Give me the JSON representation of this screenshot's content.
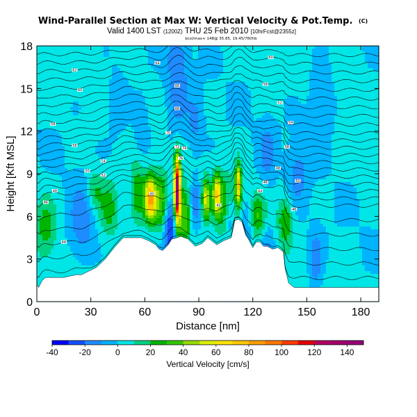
{
  "chart_data": {
    "type": "heatmap",
    "title": "Wind-Parallel Section at Max W: Vertical Velocity & Pot.Temp.",
    "title_mark": "(C)",
    "subtitle_prefix": "Valid 1400 LST",
    "subtitle_utc": "(1200Z)",
    "subtitle_date": "THU 25 Feb 2010",
    "subtitle_model": "[10hrFcst@2355z]",
    "subtitle2": "bcsl/max+ 148@ 35.85, 19.45/760hb",
    "xlabel": "Distance [nm]",
    "ylabel": "Height [Kft MSL]",
    "xlim": [
      0,
      190
    ],
    "ylim": [
      0,
      18
    ],
    "xticks": [
      0,
      30,
      60,
      90,
      120,
      150,
      180
    ],
    "yticks": [
      0,
      3,
      6,
      9,
      12,
      15,
      18
    ],
    "colorbar": {
      "label": "Vertical Velocity [cm/s]",
      "range": [
        -40,
        150
      ],
      "tick_values": [
        -40,
        -20,
        0,
        20,
        40,
        60,
        80,
        100,
        120,
        140
      ],
      "tick_labels": [
        "-40",
        "-20",
        "0",
        "20",
        "40",
        "60",
        "80",
        "100",
        "120",
        "140"
      ],
      "colors": [
        "#0000ff",
        "#1450ff",
        "#1e8cff",
        "#00b4ff",
        "#00e6e6",
        "#00d282",
        "#00b400",
        "#32c800",
        "#96dc00",
        "#dcf000",
        "#ffe600",
        "#ffc800",
        "#ffa000",
        "#ff7800",
        "#ff3c00",
        "#e60000",
        "#b40064",
        "#a0006e",
        "#960078"
      ]
    },
    "terrain_profile": {
      "x": [
        0,
        1,
        3,
        5,
        15,
        22,
        25,
        28,
        33,
        38,
        43,
        48,
        52,
        58,
        62,
        66,
        68,
        70,
        73,
        75,
        78,
        80,
        84,
        88,
        92,
        95,
        100,
        104,
        108,
        110,
        112,
        114,
        116,
        118,
        120,
        122,
        124,
        126,
        128,
        131,
        134,
        137,
        138,
        140,
        143,
        147,
        150,
        155,
        160,
        165,
        170,
        175,
        180,
        185,
        190
      ],
      "height_kft": [
        1.2,
        1.0,
        1.5,
        1.7,
        1.7,
        1.9,
        1.9,
        2.1,
        2.4,
        3.0,
        3.8,
        4.5,
        4.5,
        4.5,
        4.3,
        4.0,
        3.7,
        3.6,
        4.0,
        4.4,
        4.5,
        4.6,
        4.4,
        3.9,
        4.1,
        4.5,
        4.0,
        4.3,
        4.5,
        5.7,
        5.8,
        5.6,
        4.7,
        4.3,
        3.8,
        4.2,
        4.2,
        3.9,
        3.9,
        3.7,
        3.8,
        3.5,
        2.3,
        1.3,
        1.0,
        1.0,
        1.0,
        1.0,
        1.0,
        1.0,
        1.0,
        1.0,
        1.0,
        1.0,
        1.0
      ]
    },
    "vertical_velocity_features": [
      {
        "x": 78,
        "y": 7.8,
        "sx": 1.2,
        "sy": 1.6,
        "w": 145
      },
      {
        "x": 63,
        "y": 7.2,
        "sx": 2.2,
        "sy": 1.1,
        "w": 78
      },
      {
        "x": 112,
        "y": 8.2,
        "sx": 1.2,
        "sy": 1.0,
        "w": 72
      },
      {
        "x": 100,
        "y": 7.6,
        "sx": 1.6,
        "sy": 1.0,
        "w": 58
      },
      {
        "x": 94,
        "y": 7.2,
        "sx": 1.5,
        "sy": 1.0,
        "w": 52
      },
      {
        "x": 82,
        "y": 6.0,
        "sx": 2.5,
        "sy": 1.5,
        "w": 38
      },
      {
        "x": 56,
        "y": 7.5,
        "sx": 3.0,
        "sy": 1.5,
        "w": 30
      },
      {
        "x": 69,
        "y": 7.0,
        "sx": 3.0,
        "sy": 1.5,
        "w": 34
      },
      {
        "x": 105,
        "y": 6.8,
        "sx": 4.0,
        "sy": 1.5,
        "w": 28
      },
      {
        "x": 122,
        "y": 6.0,
        "sx": 3.5,
        "sy": 1.2,
        "w": 30
      },
      {
        "x": 138,
        "y": 5.7,
        "sx": 3.0,
        "sy": 1.2,
        "w": 28
      },
      {
        "x": 40,
        "y": 6.5,
        "sx": 4.0,
        "sy": 1.5,
        "w": 24
      },
      {
        "x": 5,
        "y": 5.2,
        "sx": 4.0,
        "sy": 1.5,
        "w": 22
      },
      {
        "x": 32,
        "y": 7.8,
        "sx": 3.0,
        "sy": 1.0,
        "w": 20
      },
      {
        "x": 74,
        "y": 5.2,
        "sx": 2.5,
        "sy": 1.5,
        "w": -35
      },
      {
        "x": 88,
        "y": 7.0,
        "sx": 2.0,
        "sy": 1.2,
        "w": -22
      },
      {
        "x": 25,
        "y": 5.5,
        "sx": 5.0,
        "sy": 1.8,
        "w": -20
      },
      {
        "x": 107,
        "y": 6.0,
        "sx": 2.0,
        "sy": 1.2,
        "w": -22
      },
      {
        "x": 118,
        "y": 5.5,
        "sx": 2.5,
        "sy": 1.4,
        "w": -18
      },
      {
        "x": 128,
        "y": 3.5,
        "sx": 3.0,
        "sy": 1.5,
        "w": -15
      },
      {
        "x": 155,
        "y": 2.8,
        "sx": 2.5,
        "sy": 1.5,
        "w": -20
      },
      {
        "x": 145,
        "y": 9.0,
        "sx": 4.0,
        "sy": 1.6,
        "w": -15
      },
      {
        "x": 128,
        "y": 10.5,
        "sx": 3.0,
        "sy": 1.5,
        "w": -15
      },
      {
        "x": 78,
        "y": 16.0,
        "sx": 4.0,
        "sy": 3.0,
        "w": -20
      },
      {
        "x": 88,
        "y": 12.5,
        "sx": 3.0,
        "sy": 1.5,
        "w": -14
      },
      {
        "x": 58,
        "y": 12.0,
        "sx": 3.0,
        "sy": 1.5,
        "w": -13
      },
      {
        "x": 45,
        "y": 14.0,
        "sx": 4.0,
        "sy": 1.5,
        "w": -12
      },
      {
        "x": 158,
        "y": 14.0,
        "sx": 5.0,
        "sy": 2.0,
        "w": -12
      }
    ],
    "theta_contours": {
      "note": "potential temperature isentropes (black lines)",
      "base_heights_kft": [
        2.0,
        3.0,
        4.0,
        5.0,
        6.0,
        7.0,
        7.5,
        8.0,
        8.5,
        9.0,
        9.5,
        10.0,
        10.5,
        11.0,
        11.5,
        12.0,
        12.6,
        13.2,
        13.8,
        14.4,
        15.0,
        15.6,
        16.2,
        16.8,
        17.4
      ],
      "labels": [
        {
          "text": "44",
          "x": 15,
          "y": 4.2
        },
        {
          "text": "46",
          "x": 5,
          "y": 7.0
        },
        {
          "text": "48",
          "x": 10,
          "y": 7.8
        },
        {
          "text": "50",
          "x": 28,
          "y": 9.2
        },
        {
          "text": "52",
          "x": 37,
          "y": 8.9
        },
        {
          "text": "54",
          "x": 37,
          "y": 9.9
        },
        {
          "text": "56",
          "x": 21,
          "y": 11.0
        },
        {
          "text": "58",
          "x": 9,
          "y": 12.5
        },
        {
          "text": "60",
          "x": 24,
          "y": 14.9
        },
        {
          "text": "62",
          "x": 21,
          "y": 16.3
        },
        {
          "text": "64",
          "x": 67,
          "y": 16.8
        },
        {
          "text": "66",
          "x": 78,
          "y": 15.2
        },
        {
          "text": "68",
          "x": 78,
          "y": 13.6
        },
        {
          "text": "70",
          "x": 73,
          "y": 11.9
        },
        {
          "text": "72",
          "x": 78,
          "y": 10.9
        },
        {
          "text": "74",
          "x": 82,
          "y": 10.8
        },
        {
          "text": "76",
          "x": 80,
          "y": 10.1
        },
        {
          "text": "40",
          "x": 64,
          "y": 7.6
        },
        {
          "text": "42",
          "x": 101,
          "y": 6.8
        },
        {
          "text": "44",
          "x": 124,
          "y": 7.8
        },
        {
          "text": "46",
          "x": 127,
          "y": 8.4
        },
        {
          "text": "48",
          "x": 134,
          "y": 9.4
        },
        {
          "text": "50",
          "x": 145,
          "y": 8.5
        },
        {
          "text": "52",
          "x": 135,
          "y": 14.0
        },
        {
          "text": "54",
          "x": 141,
          "y": 12.6
        },
        {
          "text": "56",
          "x": 139,
          "y": 10.9
        },
        {
          "text": "58",
          "x": 127,
          "y": 15.3
        },
        {
          "text": "60",
          "x": 130,
          "y": 17.2
        },
        {
          "text": "46",
          "x": 143,
          "y": 6.5
        }
      ]
    }
  }
}
